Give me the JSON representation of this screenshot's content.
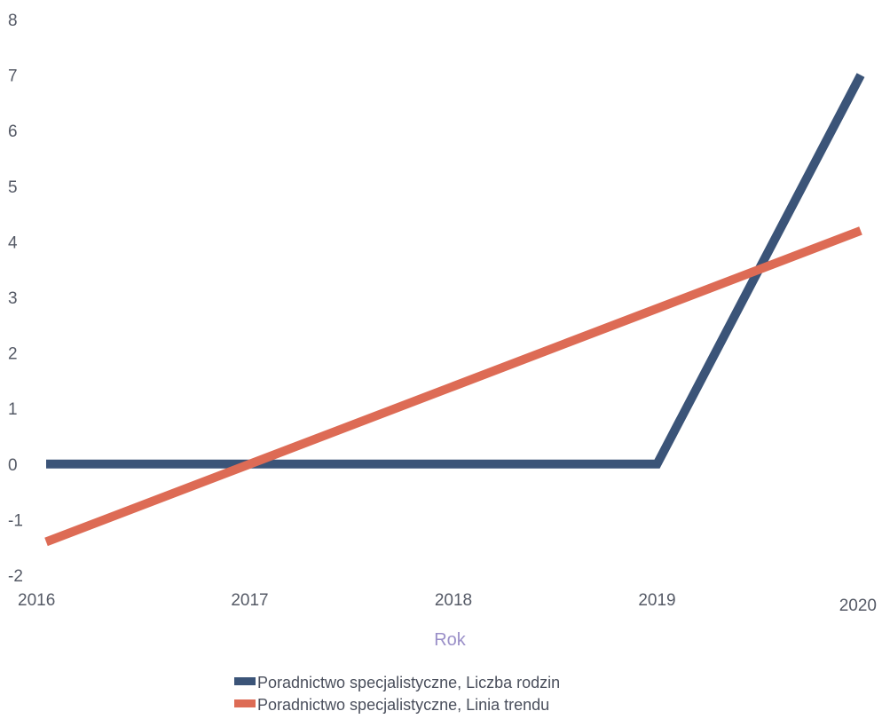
{
  "chart_data": {
    "type": "line",
    "title": "",
    "xlabel": "Rok",
    "ylabel": "",
    "x": [
      "2016",
      "2017",
      "2018",
      "2019",
      "2020"
    ],
    "xlim": [
      2016,
      2020
    ],
    "ylim": [
      -2,
      8
    ],
    "yticks": [
      "8",
      "7",
      "6",
      "5",
      "4",
      "3",
      "2",
      "1",
      "0",
      "-1",
      "-2"
    ],
    "grid": false,
    "legend_position": "bottom",
    "series": [
      {
        "name": "Poradnictwo specjalistyczne, Liczba rodzin",
        "color": "#3b5478",
        "values": [
          0,
          0,
          0,
          0,
          7
        ]
      },
      {
        "name": "Poradnictwo specjalistyczne, Linia trendu",
        "color": "#dd6b55",
        "values": [
          -1.4,
          0,
          1.4,
          2.8,
          4.2
        ]
      }
    ]
  }
}
